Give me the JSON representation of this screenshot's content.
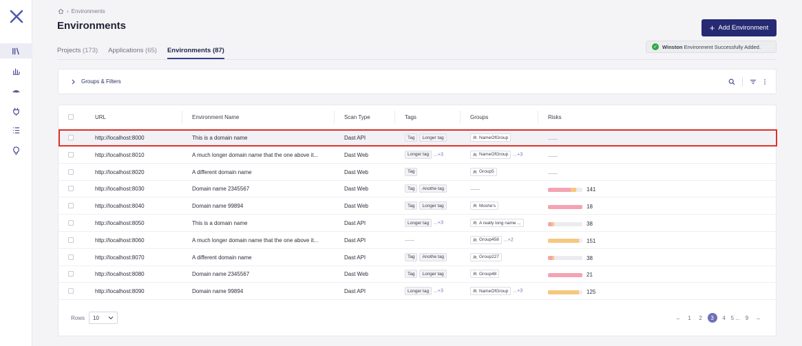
{
  "sidebar": {
    "logo": "x-logo-icon",
    "items": [
      {
        "icon": "library-icon",
        "active": true
      },
      {
        "icon": "bar-chart-icon",
        "active": false
      },
      {
        "icon": "signal-icon",
        "active": false
      },
      {
        "icon": "plug-icon",
        "active": false
      },
      {
        "icon": "list-icon",
        "active": false
      },
      {
        "icon": "lightbulb-icon",
        "active": false
      }
    ]
  },
  "breadcrumb": {
    "home_icon": "home-icon",
    "separator": "›",
    "current": "Environments"
  },
  "page_title": "Environments",
  "add_button": {
    "label": "Add Environment",
    "icon": "+"
  },
  "toast": {
    "user": "Winston",
    "message": "Environment Successfully Added."
  },
  "tabs": [
    {
      "label": "Projects",
      "count": "(173)",
      "active": false
    },
    {
      "label": "Applications",
      "count": "(65)",
      "active": false
    },
    {
      "label": "Environments",
      "count": "(87)",
      "active": true
    }
  ],
  "filters": {
    "label": "Groups & Filters"
  },
  "table": {
    "headers": [
      "URL",
      "Environment Name",
      "Scan Type",
      "Tags",
      "Groups",
      "Risks"
    ],
    "rows": [
      {
        "url": "http://localhost:8000",
        "name": "This is a domain name",
        "scan": "Dast API",
        "tags": [
          "Tag",
          "Longer tag"
        ],
        "tags_more": "",
        "groups": [
          "NameOfGroup"
        ],
        "groups_more": "",
        "risk": null
      },
      {
        "url": "http://localhost:8010",
        "name": "A much longer domain name that the one above it...",
        "scan": "Dast Web",
        "tags": [
          "Longer tag"
        ],
        "tags_more": "...+3",
        "groups": [
          "NameOfGroup"
        ],
        "groups_more": "...+3",
        "risk": null
      },
      {
        "url": "http://localhost:8020",
        "name": "A different domain name",
        "scan": "Dast Web",
        "tags": [
          "Tag"
        ],
        "tags_more": "",
        "groups": [
          "Group5"
        ],
        "groups_more": "",
        "risk": null
      },
      {
        "url": "http://localhost:8030",
        "name": "Domain name 2345567",
        "scan": "Dast Web",
        "tags": [
          "Tag",
          "Anothe tag"
        ],
        "tags_more": "",
        "groups": [],
        "groups_more": "",
        "risk": {
          "value": "141",
          "red": 0.66,
          "orange": 0.16,
          "yellow": 0.0
        }
      },
      {
        "url": "http://localhost:8040",
        "name": "Domain name 99894",
        "scan": "Dast Web",
        "tags": [
          "Tag",
          "Longer tag"
        ],
        "tags_more": "",
        "groups": [
          "Moshe's"
        ],
        "groups_more": "",
        "risk": {
          "value": "18",
          "red": 1.0,
          "orange": 0.0,
          "yellow": 0.0
        }
      },
      {
        "url": "http://localhost:8050",
        "name": "This is a domain name",
        "scan": "Dast API",
        "tags": [
          "Longer tag"
        ],
        "tags_more": "...+3",
        "groups": [
          "A really long name ..."
        ],
        "groups_more": "",
        "risk": {
          "value": "38",
          "red": 0.1,
          "orange": 0.08,
          "yellow": 0.0
        }
      },
      {
        "url": "http://localhost:8060",
        "name": "A much longer domain name that the one above it...",
        "scan": "Dast API",
        "tags": [],
        "tags_more": "",
        "groups": [
          "Group458"
        ],
        "groups_more": "...+2",
        "risk": {
          "value": "151",
          "red": 0.0,
          "orange": 0.0,
          "yellow": 0.9
        }
      },
      {
        "url": "http://localhost:8070",
        "name": "A different domain name",
        "scan": "Dast API",
        "tags": [
          "Tag",
          "Anothe tag"
        ],
        "tags_more": "",
        "groups": [
          "Group227"
        ],
        "groups_more": "",
        "risk": {
          "value": "38",
          "red": 0.12,
          "orange": 0.06,
          "yellow": 0.0
        }
      },
      {
        "url": "http://localhost:8080",
        "name": "Domain name 2345567",
        "scan": "Dast Web",
        "tags": [
          "Tag",
          "Longer tag"
        ],
        "tags_more": "",
        "groups": [
          "Group48"
        ],
        "groups_more": "",
        "risk": {
          "value": "21",
          "red": 1.0,
          "orange": 0.0,
          "yellow": 0.0
        }
      },
      {
        "url": "http://localhost:8090",
        "name": "Domain name 99894",
        "scan": "Dast API",
        "tags": [
          "Longer tag"
        ],
        "tags_more": "...+3",
        "groups": [
          "NameOfGroup"
        ],
        "groups_more": "...+3",
        "risk": {
          "value": "125",
          "red": 0.0,
          "orange": 0.0,
          "yellow": 0.9
        }
      }
    ]
  },
  "footer": {
    "rows_label": "Rows",
    "rows_value": "10",
    "pages": [
      "1",
      "2",
      "3",
      "4",
      "5 ...",
      "9"
    ],
    "current_page": "3"
  },
  "colors": {
    "accent": "#262a73",
    "risk_red": "#f4a3b2",
    "risk_orange": "#f6c77f",
    "highlight": "#e03028"
  }
}
